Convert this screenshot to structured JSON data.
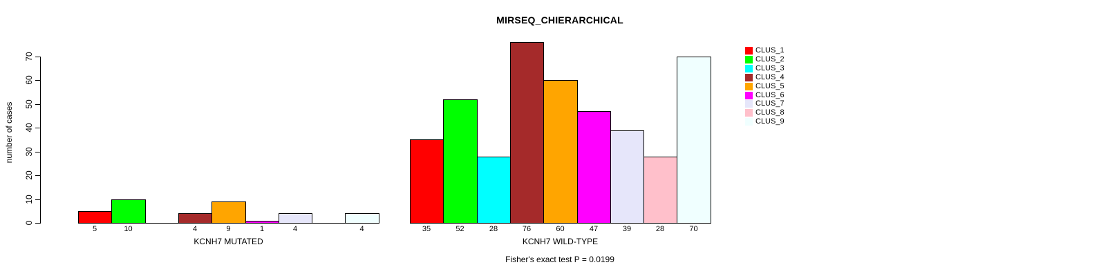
{
  "chart_data": {
    "type": "bar",
    "title": "MIRSEQ_CHIERARCHICAL",
    "ylabel": "number of cases",
    "annotation": "Fisher's exact test P = 0.0199",
    "ylim": [
      0,
      70
    ],
    "yticks": [
      0,
      10,
      20,
      30,
      40,
      50,
      60,
      70
    ],
    "grid": "off",
    "legend_position": "right-outside",
    "series": [
      {
        "name": "CLUS_1",
        "color": "#FF0000"
      },
      {
        "name": "CLUS_2",
        "color": "#00FF00"
      },
      {
        "name": "CLUS_3",
        "color": "#00FFFF"
      },
      {
        "name": "CLUS_4",
        "color": "#A52A2A"
      },
      {
        "name": "CLUS_5",
        "color": "#FFA500"
      },
      {
        "name": "CLUS_6",
        "color": "#FF00FF"
      },
      {
        "name": "CLUS_7",
        "color": "#E6E6FA"
      },
      {
        "name": "CLUS_8",
        "color": "#FFC0CB"
      },
      {
        "name": "CLUS_9",
        "color": "#F0FFFF"
      }
    ],
    "groups": [
      {
        "label": "KCNH7 MUTATED",
        "values": [
          5,
          10,
          0,
          4,
          9,
          1,
          4,
          0,
          4
        ]
      },
      {
        "label": "KCNH7 WILD-TYPE",
        "values": [
          35,
          52,
          28,
          76,
          60,
          47,
          39,
          28,
          70
        ]
      }
    ],
    "notes": "zero-value bars are not drawn and get no numeric label"
  }
}
